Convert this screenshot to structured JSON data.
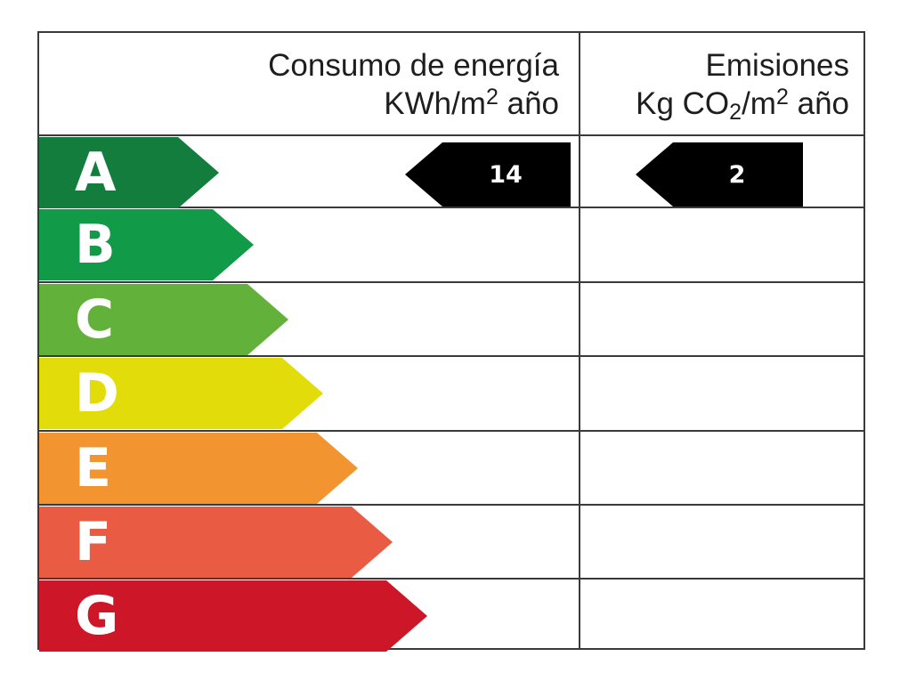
{
  "header": {
    "energy_title": "Consumo de energía",
    "energy_unit_a": "KWh/m",
    "energy_unit_sup": "2",
    "energy_unit_b": " año",
    "emissions_title": "Emisiones",
    "emissions_unit_a": "Kg CO",
    "emissions_unit_sub": "2",
    "emissions_unit_mid": "/m",
    "emissions_unit_sup": "2",
    "emissions_unit_b": " año"
  },
  "bands": [
    {
      "letter": "A",
      "color": "#127d3c"
    },
    {
      "letter": "B",
      "color": "#119a48"
    },
    {
      "letter": "C",
      "color": "#62b13a"
    },
    {
      "letter": "D",
      "color": "#e3dc0b"
    },
    {
      "letter": "E",
      "color": "#f29531"
    },
    {
      "letter": "F",
      "color": "#e95b42"
    },
    {
      "letter": "G",
      "color": "#cd1628"
    }
  ],
  "rating": {
    "class": "A",
    "energy_value": "14",
    "emissions_value": "2",
    "pointer_color": "#000000"
  }
}
